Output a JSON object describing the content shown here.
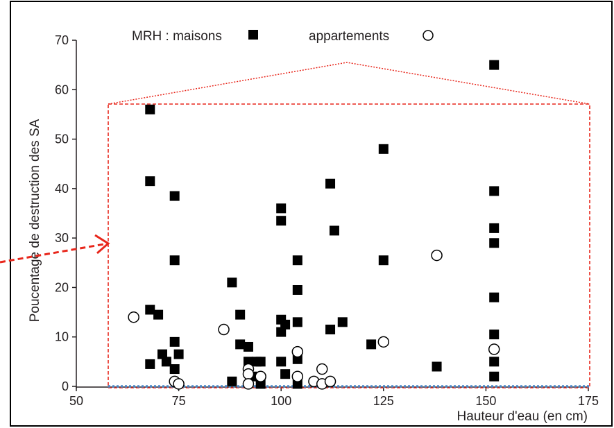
{
  "chart_data": {
    "type": "scatter",
    "title": "",
    "xlabel": "Hauteur d'eau (en cm)",
    "ylabel": "Poucentage de destruction des SA",
    "xlim": [
      50,
      175
    ],
    "ylim": [
      0,
      70
    ],
    "x_ticks": [
      "50",
      "75",
      "100",
      "125",
      "150",
      "175"
    ],
    "y_ticks": [
      "0",
      "10",
      "20",
      "30",
      "40",
      "50",
      "60",
      "70"
    ],
    "grid": false,
    "legend_position": "top",
    "series": [
      {
        "name": "MRH : maisons",
        "marker": "filled-square",
        "color": "#000000",
        "points": [
          [
            68,
            56
          ],
          [
            68,
            41.5
          ],
          [
            68,
            15.5
          ],
          [
            68,
            4.5
          ],
          [
            70,
            14.5
          ],
          [
            71,
            6.5
          ],
          [
            72,
            5
          ],
          [
            74,
            38.5
          ],
          [
            74,
            25.5
          ],
          [
            74,
            9
          ],
          [
            74,
            3.5
          ],
          [
            75,
            6.5
          ],
          [
            88,
            21
          ],
          [
            88,
            1
          ],
          [
            90,
            14.5
          ],
          [
            90,
            8.5
          ],
          [
            92,
            8
          ],
          [
            92,
            5
          ],
          [
            93,
            2
          ],
          [
            94,
            5
          ],
          [
            95,
            0.5
          ],
          [
            95,
            5
          ],
          [
            100,
            36
          ],
          [
            100,
            33.5
          ],
          [
            100,
            13.5
          ],
          [
            100,
            11
          ],
          [
            100,
            5
          ],
          [
            101,
            12.5
          ],
          [
            101,
            2.5
          ],
          [
            104,
            25.5
          ],
          [
            104,
            19.5
          ],
          [
            104,
            13
          ],
          [
            104,
            5.5
          ],
          [
            104,
            0.5
          ],
          [
            112,
            41
          ],
          [
            112,
            11.5
          ],
          [
            113,
            31.5
          ],
          [
            115,
            13
          ],
          [
            122,
            8.5
          ],
          [
            125,
            48
          ],
          [
            125,
            25.5
          ],
          [
            138,
            4
          ],
          [
            152,
            65
          ],
          [
            152,
            39.5
          ],
          [
            152,
            32
          ],
          [
            152,
            29
          ],
          [
            152,
            18
          ],
          [
            152,
            10.5
          ],
          [
            152,
            5
          ],
          [
            152,
            2
          ]
        ]
      },
      {
        "name": "appartements",
        "marker": "open-circle",
        "color": "#000000",
        "points": [
          [
            64,
            14
          ],
          [
            74,
            1
          ],
          [
            75,
            0.5
          ],
          [
            86,
            11.5
          ],
          [
            92,
            3.5
          ],
          [
            92,
            2.5
          ],
          [
            92,
            0.5
          ],
          [
            95,
            2
          ],
          [
            104,
            7
          ],
          [
            104,
            2
          ],
          [
            108,
            1
          ],
          [
            110,
            3.5
          ],
          [
            110,
            0.5
          ],
          [
            112,
            1
          ],
          [
            125,
            9
          ],
          [
            138,
            26.5
          ],
          [
            152,
            7.5
          ]
        ]
      }
    ]
  }
}
